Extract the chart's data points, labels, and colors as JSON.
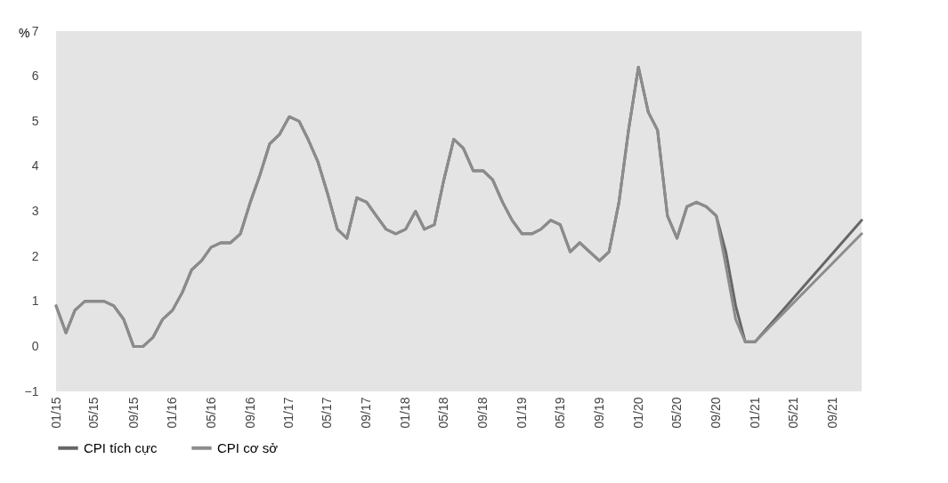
{
  "chart_data": {
    "type": "line",
    "ylabel": "%",
    "legend": "bottom",
    "marker": "none",
    "line_style": "solid",
    "x": [
      "2015-01",
      "2015-02",
      "2015-03",
      "2015-04",
      "2015-05",
      "2015-06",
      "2015-07",
      "2015-08",
      "2015-09",
      "2015-10",
      "2015-11",
      "2015-12",
      "2016-01",
      "2016-02",
      "2016-03",
      "2016-04",
      "2016-05",
      "2016-06",
      "2016-07",
      "2016-08",
      "2016-09",
      "2016-10",
      "2016-11",
      "2016-12",
      "2017-01",
      "2017-02",
      "2017-03",
      "2017-04",
      "2017-05",
      "2017-06",
      "2017-07",
      "2017-08",
      "2017-09",
      "2017-10",
      "2017-11",
      "2017-12",
      "2018-01",
      "2018-02",
      "2018-03",
      "2018-04",
      "2018-05",
      "2018-06",
      "2018-07",
      "2018-08",
      "2018-09",
      "2018-10",
      "2018-11",
      "2018-12",
      "2019-01",
      "2019-02",
      "2019-03",
      "2019-04",
      "2019-05",
      "2019-06",
      "2019-07",
      "2019-08",
      "2019-09",
      "2019-10",
      "2019-11",
      "2019-12",
      "2020-01",
      "2020-02",
      "2020-03",
      "2020-04",
      "2020-05",
      "2020-06",
      "2020-07",
      "2020-08",
      "2020-09",
      "2020-10",
      "2020-11",
      "2020-12",
      "2021-01",
      "2021-12"
    ],
    "series": [
      {
        "name": "CPI tích cực",
        "color": "#666666",
        "values": [
          0.9,
          0.3,
          0.8,
          1.0,
          1.0,
          1.0,
          0.9,
          0.6,
          0.0,
          0.0,
          0.2,
          0.6,
          0.8,
          1.2,
          1.7,
          1.9,
          2.2,
          2.3,
          2.3,
          2.5,
          3.2,
          3.8,
          4.5,
          4.7,
          5.1,
          5.0,
          4.6,
          4.1,
          3.4,
          2.6,
          2.4,
          3.3,
          3.2,
          2.9,
          2.6,
          2.5,
          2.6,
          3.0,
          2.6,
          2.7,
          3.7,
          4.6,
          4.4,
          3.9,
          3.9,
          3.7,
          3.2,
          2.8,
          2.5,
          2.5,
          2.6,
          2.8,
          2.7,
          2.1,
          2.3,
          2.1,
          1.9,
          2.1,
          3.2,
          4.8,
          6.2,
          5.2,
          4.8,
          2.9,
          2.4,
          3.1,
          3.2,
          3.1,
          2.9,
          2.1,
          0.9,
          0.1,
          0.1,
          2.8
        ]
      },
      {
        "name": "CPI cơ sở",
        "color": "#8c8c8c",
        "values": [
          0.9,
          0.3,
          0.8,
          1.0,
          1.0,
          1.0,
          0.9,
          0.6,
          0.0,
          0.0,
          0.2,
          0.6,
          0.8,
          1.2,
          1.7,
          1.9,
          2.2,
          2.3,
          2.3,
          2.5,
          3.2,
          3.8,
          4.5,
          4.7,
          5.1,
          5.0,
          4.6,
          4.1,
          3.4,
          2.6,
          2.4,
          3.3,
          3.2,
          2.9,
          2.6,
          2.5,
          2.6,
          3.0,
          2.6,
          2.7,
          3.7,
          4.6,
          4.4,
          3.9,
          3.9,
          3.7,
          3.2,
          2.8,
          2.5,
          2.5,
          2.6,
          2.8,
          2.7,
          2.1,
          2.3,
          2.1,
          1.9,
          2.1,
          3.2,
          4.8,
          6.2,
          5.2,
          4.8,
          2.9,
          2.4,
          3.1,
          3.2,
          3.1,
          2.9,
          1.8,
          0.6,
          0.1,
          0.1,
          2.5
        ]
      }
    ],
    "xlim": [
      "2015-01",
      "2021-12"
    ],
    "xticks": [
      {
        "value": "2015-01",
        "label": "01/15"
      },
      {
        "value": "2015-05",
        "label": "05/15"
      },
      {
        "value": "2015-09",
        "label": "09/15"
      },
      {
        "value": "2016-01",
        "label": "01/16"
      },
      {
        "value": "2016-05",
        "label": "05/16"
      },
      {
        "value": "2016-09",
        "label": "09/16"
      },
      {
        "value": "2017-01",
        "label": "01/17"
      },
      {
        "value": "2017-05",
        "label": "05/17"
      },
      {
        "value": "2017-09",
        "label": "09/17"
      },
      {
        "value": "2018-01",
        "label": "01/18"
      },
      {
        "value": "2018-05",
        "label": "05/18"
      },
      {
        "value": "2018-09",
        "label": "09/18"
      },
      {
        "value": "2019-01",
        "label": "01/19"
      },
      {
        "value": "2019-05",
        "label": "05/19"
      },
      {
        "value": "2019-09",
        "label": "09/19"
      },
      {
        "value": "2020-01",
        "label": "01/20"
      },
      {
        "value": "2020-05",
        "label": "05/20"
      },
      {
        "value": "2020-09",
        "label": "09/20"
      },
      {
        "value": "2021-01",
        "label": "01/21"
      },
      {
        "value": "2021-05",
        "label": "05/21"
      },
      {
        "value": "2021-09",
        "label": "09/21"
      }
    ],
    "ylim": [
      -1,
      7
    ],
    "yticks": [
      -1,
      0,
      1,
      2,
      3,
      4,
      5,
      6,
      7
    ]
  }
}
